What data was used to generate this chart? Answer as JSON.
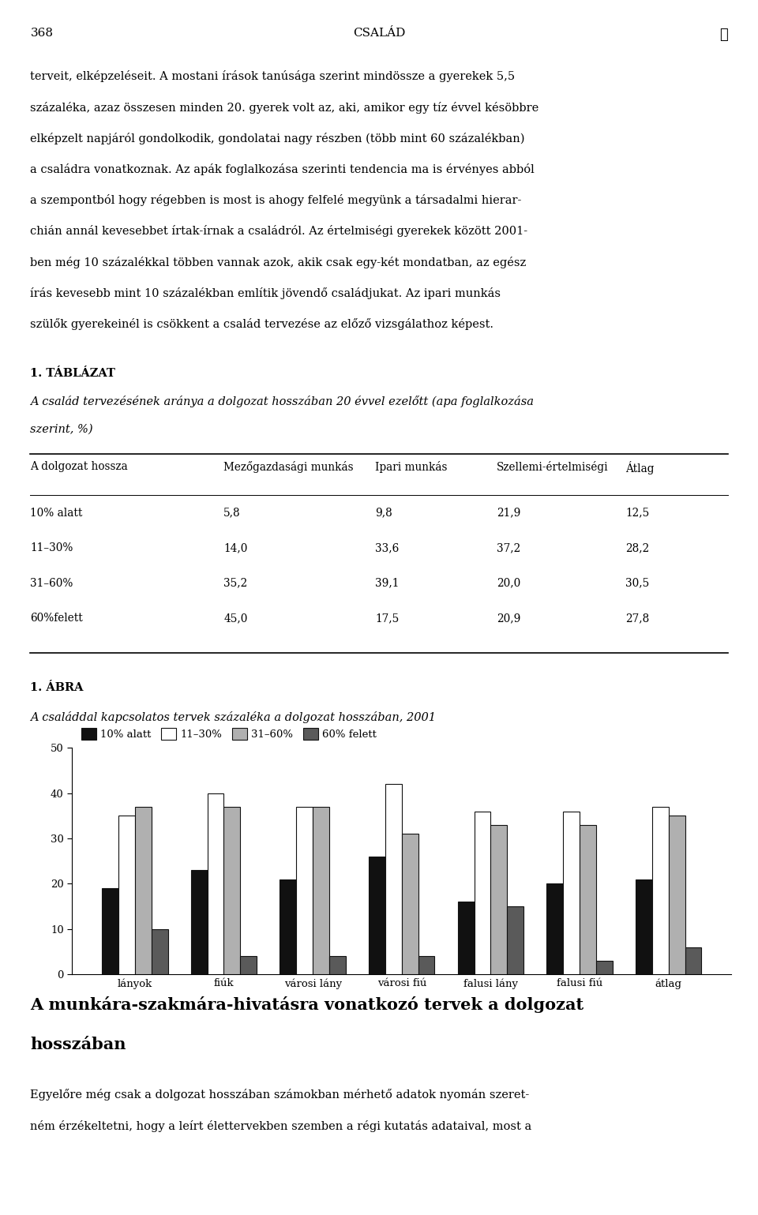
{
  "page_number": "368",
  "header_title": "CSALÁD",
  "body_text_lines": [
    "terveit, elképzeléseit. A mostani írások tanúsága szerint mindössze a gyerekek 5,5",
    "százaléka, azaz összesen minden 20. gyerek volt az, aki, amikor egy tíz évvel késöbbre",
    "elképzelt napjáról gondolkodik, gondolatai nagy részben (több mint 60 százalékban)",
    "a családra vonatkoznak. Az apák foglalkozása szerinti tendencia ma is érvényes abból",
    "a szempontból hogy régebben is most is ahogy felfelé megyünk a társadalmi hierar-",
    "chián annál kevesebbet írtak-írnak a családról. Az értelmiségi gyerekek között 2001-",
    "ben még 10 százalékkal többen vannak azok, akik csak egy-két mondatban, az egész",
    "írás kevesebb mint 10 százalékban említik jövendő családjukat. Az ipari munkás",
    "szülők gyerekeinél is csökkent a család tervezése az előző vizsgálathoz képest."
  ],
  "table_label": "1. TÁBLÁZAT",
  "table_caption_lines": [
    "A család tervezésének aránya a dolgozat hosszában 20 évvel ezelőtt (apa foglalkozása",
    "szerint, %)"
  ],
  "table_headers": [
    "A dolgozat hossza",
    "Mezőgazdasági munkás",
    "Ipari munkás",
    "Szellemi-értelmiségi",
    "Átlag"
  ],
  "table_rows": [
    [
      "10% alatt",
      "5,8",
      "9,8",
      "21,9",
      "12,5"
    ],
    [
      "11–30%",
      "14,0",
      "33,6",
      "37,2",
      "28,2"
    ],
    [
      "31–60%",
      "35,2",
      "39,1",
      "20,0",
      "30,5"
    ],
    [
      "60%felett",
      "45,0",
      "17,5",
      "20,9",
      "27,8"
    ]
  ],
  "chart_label": "1. ÁBRA",
  "chart_caption": "A családdal kapcsolatos tervek százaléka a dolgozat hosszában, 2001",
  "categories": [
    "lányok",
    "fiúk",
    "városi lány",
    "városi fiú",
    "falusi lány",
    "falusi fiú",
    "átlag"
  ],
  "series": {
    "10% alatt": [
      19,
      23,
      21,
      26,
      16,
      20,
      21
    ],
    "11–30%": [
      35,
      40,
      37,
      42,
      36,
      36,
      37
    ],
    "31–60%": [
      37,
      37,
      37,
      31,
      33,
      33,
      35
    ],
    "60% felett": [
      10,
      4,
      4,
      4,
      15,
      3,
      6
    ]
  },
  "bar_colors": {
    "10% alatt": "#111111",
    "11–30%": "#ffffff",
    "31–60%": "#b0b0b0",
    "60% felett": "#5a5a5a"
  },
  "bar_edge_color": "#111111",
  "ylim": [
    0,
    50
  ],
  "yticks": [
    0,
    10,
    20,
    30,
    40,
    50
  ],
  "background_color": "#ffffff",
  "footer_heading_lines": [
    "A munkára-szakmára-hivatásra vonatkozó tervek a dolgozat",
    "hosszában"
  ],
  "footer_text_lines": [
    "Egyelőre még csak a dolgozat hosszában számokban mérhető adatok nyomán szeret-",
    "ném érzékeltetni, hogy a leírt élettervekben szemben a régi kutatás adataival, most a"
  ]
}
